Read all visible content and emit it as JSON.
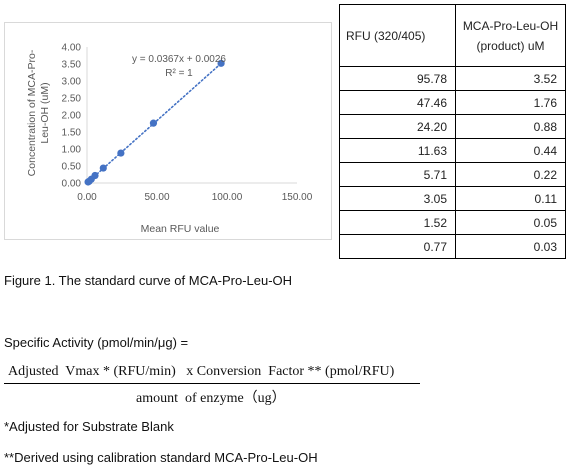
{
  "chart_data": {
    "type": "scatter",
    "xlabel": "Mean RFU value",
    "ylabel_lines": [
      "Concentration of MCA-Pro-",
      "Leu-OH (uM)"
    ],
    "x_ticks": [
      "0.00",
      "50.00",
      "100.00",
      "150.00"
    ],
    "y_ticks": [
      "0.00",
      "0.50",
      "1.00",
      "1.50",
      "2.00",
      "2.50",
      "3.00",
      "3.50",
      "4.00"
    ],
    "xlim": [
      0,
      150
    ],
    "ylim": [
      0,
      4
    ],
    "points": [
      {
        "x": 95.78,
        "y": 3.52
      },
      {
        "x": 47.46,
        "y": 1.76
      },
      {
        "x": 24.2,
        "y": 0.88
      },
      {
        "x": 11.63,
        "y": 0.44
      },
      {
        "x": 5.71,
        "y": 0.22
      },
      {
        "x": 3.05,
        "y": 0.11
      },
      {
        "x": 1.52,
        "y": 0.05
      },
      {
        "x": 0.77,
        "y": 0.03
      }
    ],
    "trendline": {
      "slope": 0.0367,
      "intercept": 0.0026,
      "style": "dotted"
    },
    "equation_label": "y = 0.0367x + 0.0026",
    "r2_label": "R² = 1",
    "point_color": "#4472c4",
    "axis_text_color": "#595959",
    "grid": false,
    "legend": "none"
  },
  "table": {
    "headers": [
      "RFU (320/405)",
      "MCA-Pro-Leu-OH (product) uM"
    ],
    "rows": [
      [
        "95.78",
        "3.52"
      ],
      [
        "47.46",
        "1.76"
      ],
      [
        "24.20",
        "0.88"
      ],
      [
        "11.63",
        "0.44"
      ],
      [
        "5.71",
        "0.22"
      ],
      [
        "3.05",
        "0.11"
      ],
      [
        "1.52",
        "0.05"
      ],
      [
        "0.77",
        "0.03"
      ]
    ]
  },
  "caption": "Figure 1. The standard curve of MCA-Pro-Leu-OH",
  "formula": {
    "title": "Specific Activity (pmol/min/μg) =",
    "numerator": "Adjusted  Vmax * (RFU/min)   x Conversion  Factor ** (pmol/RFU)",
    "denominator": "amount  of enzyme（ug）"
  },
  "notes": [
    "*Adjusted for Substrate Blank",
    "**Derived using calibration standard MCA-Pro-Leu-OH"
  ]
}
